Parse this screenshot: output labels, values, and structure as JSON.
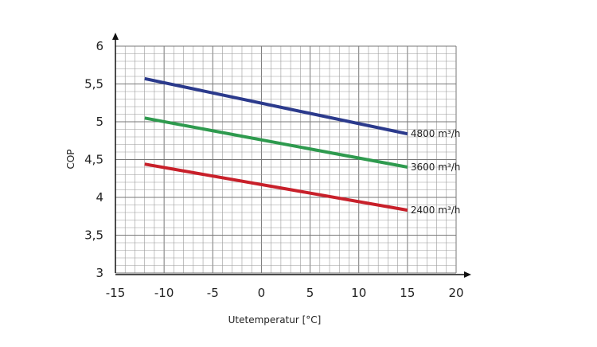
{
  "chart_data": {
    "type": "line",
    "title": "",
    "xlabel": "Utetemperatur [°C]",
    "ylabel": "COP",
    "xlim": [
      -15,
      20
    ],
    "ylim": [
      3,
      6
    ],
    "xticks": [
      "-15",
      "-10",
      "-5",
      "0",
      "5",
      "10",
      "15",
      "20"
    ],
    "yticks": [
      "3",
      "3,5",
      "4",
      "4,5",
      "5",
      "5,5",
      "6"
    ],
    "grid": true,
    "legend": "inline labels at line ends",
    "series": [
      {
        "name": "4800 m³/h",
        "color": "#2b3a8c",
        "x": [
          -12,
          15
        ],
        "y": [
          5.57,
          4.84
        ]
      },
      {
        "name": "3600 m³/h",
        "color": "#2e9a4e",
        "x": [
          -12,
          15
        ],
        "y": [
          5.05,
          4.4
        ]
      },
      {
        "name": "2400 m³/h",
        "color": "#c8202a",
        "x": [
          -12,
          15
        ],
        "y": [
          4.44,
          3.83
        ]
      }
    ]
  }
}
